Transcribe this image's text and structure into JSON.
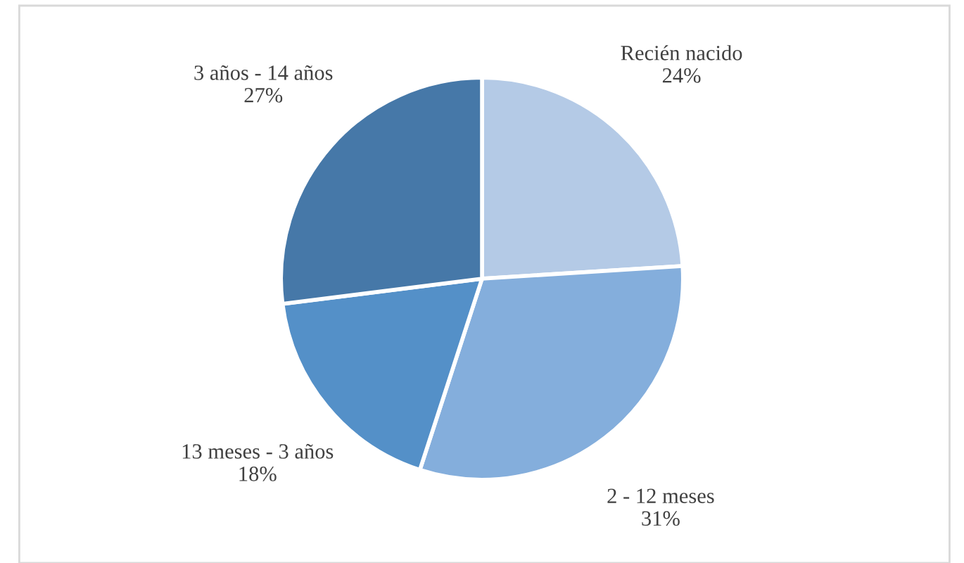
{
  "chart_data": {
    "type": "pie",
    "categories": [
      "Recién nacido",
      "2 - 12 meses",
      "13 meses - 3 años",
      "3 años - 14 años"
    ],
    "values": [
      24,
      31,
      18,
      27
    ],
    "value_labels": [
      "24%",
      "31%",
      "18%",
      "27%"
    ],
    "colors": [
      "#b4cae6",
      "#84aedc",
      "#5490c8",
      "#4678a8"
    ],
    "legend": false
  }
}
